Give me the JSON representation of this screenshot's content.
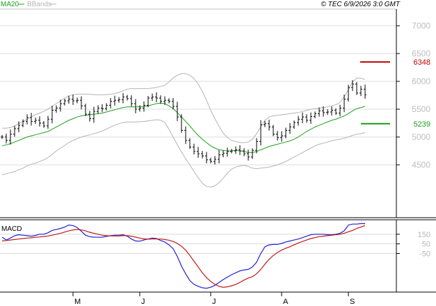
{
  "header": {
    "ma_label": "MA20",
    "bb_label": "BBands",
    "stamp": "© TEC 6/9/2026 3:0 GMT"
  },
  "colors": {
    "ma": "#1aa01a",
    "bbands": "#b4b4b4",
    "macd_line": "#2020d0",
    "signal_line": "#c01818",
    "resistance": "#c00000",
    "support": "#1aa01a",
    "grid": "#dcdcdc",
    "price_bar": "#000000"
  },
  "chart_data": [
    {
      "type": "ohlc",
      "title": "",
      "y_ticks": [
        "7000",
        "6500",
        "6000",
        "5500",
        "5000",
        "4500"
      ],
      "ylim": [
        3550,
        7300
      ],
      "x_month_labels": [
        {
          "label": "M",
          "index": 17
        },
        {
          "label": "J",
          "index": 33
        },
        {
          "label": "J",
          "index": 50
        },
        {
          "label": "A",
          "index": 67
        },
        {
          "label": "S",
          "index": 83
        }
      ],
      "levels": [
        {
          "name": "resistance",
          "value": 6348,
          "label": "6348"
        },
        {
          "name": "support",
          "value": 5239,
          "label": "5239"
        }
      ],
      "series": [
        {
          "name": "Close",
          "kind": "close",
          "values": [
            5000,
            4940,
            5050,
            5150,
            5210,
            5280,
            5350,
            5280,
            5300,
            5250,
            5200,
            5320,
            5480,
            5520,
            5600,
            5650,
            5680,
            5650,
            5660,
            5560,
            5410,
            5330,
            5460,
            5520,
            5510,
            5570,
            5640,
            5660,
            5670,
            5720,
            5690,
            5600,
            5500,
            5520,
            5570,
            5700,
            5720,
            5700,
            5640,
            5660,
            5640,
            5550,
            5360,
            5120,
            4940,
            4820,
            4740,
            4700,
            4660,
            4590,
            4560,
            4600,
            4680,
            4710,
            4740,
            4750,
            4770,
            4750,
            4700,
            4640,
            4760,
            4920,
            5220,
            5240,
            5180,
            5050,
            4990,
            5020,
            5120,
            5180,
            5260,
            5320,
            5360,
            5300,
            5370,
            5420,
            5470,
            5440,
            5450,
            5480,
            5430,
            5520,
            5680,
            5890,
            5950,
            5790,
            5860,
            5760
          ]
        },
        {
          "name": "MA20",
          "kind": "ma",
          "values": [
            4840,
            4860,
            4880,
            4910,
            4940,
            4970,
            5000,
            5020,
            5040,
            5060,
            5080,
            5100,
            5140,
            5180,
            5220,
            5260,
            5300,
            5330,
            5360,
            5380,
            5390,
            5400,
            5410,
            5420,
            5430,
            5450,
            5470,
            5490,
            5510,
            5530,
            5540,
            5540,
            5540,
            5545,
            5550,
            5560,
            5580,
            5600,
            5610,
            5600,
            5560,
            5510,
            5440,
            5360,
            5280,
            5200,
            5110,
            5030,
            4960,
            4900,
            4840,
            4800,
            4770,
            4760,
            4750,
            4750,
            4760,
            4750,
            4740,
            4720,
            4720,
            4740,
            4770,
            4800,
            4830,
            4850,
            4870,
            4890,
            4910,
            4930,
            4960,
            5000,
            5050,
            5100,
            5140,
            5180,
            5210,
            5240,
            5270,
            5300,
            5320,
            5350,
            5380,
            5420,
            5470,
            5510,
            5530,
            5550
          ]
        },
        {
          "name": "BB Upper",
          "kind": "bbands",
          "values": [
            5160,
            5160,
            5170,
            5200,
            5240,
            5280,
            5320,
            5360,
            5400,
            5430,
            5460,
            5500,
            5550,
            5600,
            5650,
            5700,
            5740,
            5760,
            5770,
            5770,
            5770,
            5770,
            5760,
            5760,
            5760,
            5760,
            5770,
            5780,
            5800,
            5830,
            5860,
            5870,
            5870,
            5870,
            5870,
            5870,
            5880,
            5890,
            5910,
            5930,
            5990,
            6060,
            6110,
            6140,
            6140,
            6110,
            6050,
            5950,
            5820,
            5660,
            5480,
            5330,
            5190,
            5070,
            4990,
            4940,
            4920,
            4900,
            4900,
            4910,
            4960,
            5060,
            5180,
            5300,
            5360,
            5380,
            5390,
            5400,
            5410,
            5420,
            5430,
            5440,
            5460,
            5480,
            5500,
            5510,
            5520,
            5530,
            5540,
            5560,
            5580,
            5620,
            5720,
            5850,
            5990,
            6060,
            6060,
            6030
          ]
        },
        {
          "name": "BB Lower",
          "kind": "bbands",
          "values": [
            4320,
            4340,
            4360,
            4380,
            4410,
            4440,
            4480,
            4510,
            4530,
            4560,
            4590,
            4630,
            4690,
            4750,
            4800,
            4850,
            4900,
            4940,
            4970,
            5000,
            5020,
            5040,
            5060,
            5080,
            5110,
            5140,
            5180,
            5210,
            5240,
            5260,
            5270,
            5270,
            5270,
            5275,
            5280,
            5290,
            5300,
            5310,
            5300,
            5260,
            5140,
            5000,
            4860,
            4730,
            4610,
            4500,
            4380,
            4270,
            4170,
            4110,
            4100,
            4120,
            4180,
            4260,
            4350,
            4420,
            4460,
            4480,
            4490,
            4470,
            4440,
            4430,
            4440,
            4450,
            4460,
            4480,
            4500,
            4530,
            4560,
            4600,
            4640,
            4680,
            4720,
            4760,
            4800,
            4840,
            4870,
            4890,
            4910,
            4930,
            4950,
            4960,
            4980,
            5000,
            5030,
            5050,
            5060,
            5080
          ]
        }
      ]
    },
    {
      "type": "line",
      "title": "MACD",
      "y_ticks": [
        "150",
        "50",
        "-50"
      ],
      "ylim": [
        -450,
        300
      ],
      "series": [
        {
          "name": "MACD",
          "kind": "macd",
          "values": [
            120,
            90,
            110,
            135,
            145,
            140,
            135,
            130,
            138,
            150,
            150,
            165,
            190,
            200,
            210,
            225,
            245,
            240,
            220,
            180,
            140,
            125,
            120,
            118,
            120,
            128,
            135,
            140,
            140,
            145,
            130,
            100,
            80,
            78,
            90,
            100,
            110,
            105,
            85,
            70,
            40,
            0,
            -80,
            -180,
            -260,
            -330,
            -370,
            -390,
            -405,
            -410,
            -400,
            -380,
            -350,
            -320,
            -295,
            -270,
            -250,
            -230,
            -220,
            -215,
            -190,
            -140,
            -50,
            20,
            40,
            45,
            45,
            55,
            70,
            80,
            90,
            100,
            115,
            130,
            145,
            150,
            150,
            150,
            145,
            145,
            150,
            160,
            185,
            245,
            255,
            255,
            260,
            260
          ]
        },
        {
          "name": "Signal",
          "kind": "signal",
          "values": [
            80,
            85,
            90,
            95,
            100,
            105,
            110,
            113,
            118,
            122,
            126,
            132,
            140,
            150,
            160,
            172,
            185,
            195,
            200,
            195,
            185,
            170,
            160,
            150,
            140,
            135,
            133,
            132,
            132,
            135,
            135,
            130,
            120,
            110,
            102,
            99,
            100,
            101,
            100,
            95,
            88,
            75,
            55,
            25,
            -15,
            -70,
            -130,
            -190,
            -250,
            -300,
            -340,
            -370,
            -390,
            -400,
            -395,
            -385,
            -370,
            -350,
            -325,
            -305,
            -290,
            -260,
            -215,
            -160,
            -110,
            -70,
            -40,
            -15,
            5,
            20,
            40,
            60,
            75,
            90,
            105,
            115,
            125,
            130,
            135,
            140,
            145,
            150,
            160,
            175,
            190,
            210,
            225,
            240
          ]
        }
      ]
    }
  ]
}
